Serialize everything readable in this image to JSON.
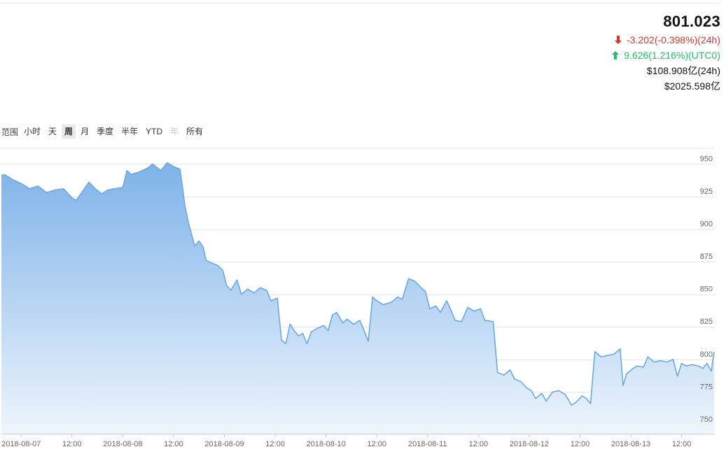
{
  "stats": {
    "price": "801.023",
    "change_24h": "-3.202(-0.398%)(24h)",
    "change_utc0": "9.626(1.216%)(UTC0)",
    "volume_24h": "$108.908亿(24h)",
    "market_cap": "$2025.598亿",
    "down_color": "#e5312b",
    "up_color": "#1ec266",
    "down_icon": "arrow-down-icon",
    "up_icon": "arrow-up-icon"
  },
  "range_selector": {
    "label": "范围",
    "options": [
      "小时",
      "天",
      "周",
      "月",
      "季度",
      "半年",
      "YTD",
      "年",
      "所有"
    ],
    "active": "周",
    "disabled": [
      "年"
    ]
  },
  "chart_data": {
    "type": "area",
    "title": "",
    "xlabel": "",
    "ylabel": "",
    "x_tick_labels": [
      "2018-08-07",
      "12:00",
      "2018-08-08",
      "12:00",
      "2018-08-09",
      "12:00",
      "2018-08-10",
      "12:00",
      "2018-08-11",
      "12:00",
      "2018-08-12",
      "12:00",
      "2018-08-13",
      "12:00"
    ],
    "y_ticks": [
      750,
      775,
      800,
      825,
      850,
      875,
      900,
      925,
      950
    ],
    "ylim": [
      743,
      962
    ],
    "xlim": [
      "2018-08-06 19:20",
      "2018-08-13 19:40"
    ],
    "grid": true,
    "y_axis_side": "right",
    "line_color": "#6aa9e6",
    "fill_top_color": "#7eb2e8",
    "fill_bottom_color": "#eef5fd",
    "series": [
      {
        "name": "",
        "points": [
          [
            "2018-08-06 19:20",
            941
          ],
          [
            "2018-08-06 20:00",
            942
          ],
          [
            "2018-08-06 22:00",
            938
          ],
          [
            "2018-08-07 00:00",
            935
          ],
          [
            "2018-08-07 02:00",
            931
          ],
          [
            "2018-08-07 04:00",
            933
          ],
          [
            "2018-08-07 06:00",
            928
          ],
          [
            "2018-08-07 08:00",
            930
          ],
          [
            "2018-08-07 10:00",
            931
          ],
          [
            "2018-08-07 12:00",
            924
          ],
          [
            "2018-08-07 13:00",
            922
          ],
          [
            "2018-08-07 14:30",
            929
          ],
          [
            "2018-08-07 16:00",
            936
          ],
          [
            "2018-08-07 17:30",
            931
          ],
          [
            "2018-08-07 19:00",
            927
          ],
          [
            "2018-08-07 20:30",
            930
          ],
          [
            "2018-08-07 22:00",
            931
          ],
          [
            "2018-08-08 00:00",
            932
          ],
          [
            "2018-08-08 01:00",
            945
          ],
          [
            "2018-08-08 02:00",
            942
          ],
          [
            "2018-08-08 04:00",
            944
          ],
          [
            "2018-08-08 06:00",
            947
          ],
          [
            "2018-08-08 07:00",
            950
          ],
          [
            "2018-08-08 09:00",
            945
          ],
          [
            "2018-08-08 10:30",
            951
          ],
          [
            "2018-08-08 12:00",
            948
          ],
          [
            "2018-08-08 13:30",
            946
          ],
          [
            "2018-08-08 14:00",
            935
          ],
          [
            "2018-08-08 14:40",
            918
          ],
          [
            "2018-08-08 15:30",
            905
          ],
          [
            "2018-08-08 17:00",
            887
          ],
          [
            "2018-08-08 18:00",
            891
          ],
          [
            "2018-08-08 19:00",
            886
          ],
          [
            "2018-08-08 19:40",
            876
          ],
          [
            "2018-08-08 21:00",
            874
          ],
          [
            "2018-08-08 22:30",
            872
          ],
          [
            "2018-08-08 23:40",
            868
          ],
          [
            "2018-08-09 00:30",
            857
          ],
          [
            "2018-08-09 01:30",
            853
          ],
          [
            "2018-08-09 03:00",
            861
          ],
          [
            "2018-08-09 04:00",
            850
          ],
          [
            "2018-08-09 05:30",
            854
          ],
          [
            "2018-08-09 07:00",
            851
          ],
          [
            "2018-08-09 08:30",
            855
          ],
          [
            "2018-08-09 10:00",
            853
          ],
          [
            "2018-08-09 11:00",
            845
          ],
          [
            "2018-08-09 12:30",
            847
          ],
          [
            "2018-08-09 13:30",
            815
          ],
          [
            "2018-08-09 14:30",
            812
          ],
          [
            "2018-08-09 15:30",
            827
          ],
          [
            "2018-08-09 16:30",
            822
          ],
          [
            "2018-08-09 17:30",
            818
          ],
          [
            "2018-08-09 18:30",
            820
          ],
          [
            "2018-08-09 19:30",
            812
          ],
          [
            "2018-08-09 20:30",
            821
          ],
          [
            "2018-08-09 22:00",
            824
          ],
          [
            "2018-08-09 23:30",
            826
          ],
          [
            "2018-08-10 00:30",
            822
          ],
          [
            "2018-08-10 01:30",
            834
          ],
          [
            "2018-08-10 02:30",
            836
          ],
          [
            "2018-08-10 04:00",
            828
          ],
          [
            "2018-08-10 05:00",
            831
          ],
          [
            "2018-08-10 06:30",
            827
          ],
          [
            "2018-08-10 08:00",
            830
          ],
          [
            "2018-08-10 09:00",
            822
          ],
          [
            "2018-08-10 10:00",
            814
          ],
          [
            "2018-08-10 11:00",
            848
          ],
          [
            "2018-08-10 12:00",
            845
          ],
          [
            "2018-08-10 13:30",
            842
          ],
          [
            "2018-08-10 15:30",
            844
          ],
          [
            "2018-08-10 17:00",
            848
          ],
          [
            "2018-08-10 18:00",
            846
          ],
          [
            "2018-08-10 19:30",
            862
          ],
          [
            "2018-08-10 21:00",
            860
          ],
          [
            "2018-08-10 22:30",
            855
          ],
          [
            "2018-08-10 23:30",
            852
          ],
          [
            "2018-08-11 00:30",
            839
          ],
          [
            "2018-08-11 02:00",
            841
          ],
          [
            "2018-08-11 03:00",
            836
          ],
          [
            "2018-08-11 04:30",
            845
          ],
          [
            "2018-08-11 05:30",
            838
          ],
          [
            "2018-08-11 06:30",
            830
          ],
          [
            "2018-08-11 08:00",
            829
          ],
          [
            "2018-08-11 09:30",
            840
          ],
          [
            "2018-08-11 11:00",
            837
          ],
          [
            "2018-08-11 12:30",
            839
          ],
          [
            "2018-08-11 13:30",
            830
          ],
          [
            "2018-08-11 15:30",
            829
          ],
          [
            "2018-08-11 16:30",
            790
          ],
          [
            "2018-08-11 18:00",
            788
          ],
          [
            "2018-08-11 19:30",
            792
          ],
          [
            "2018-08-11 20:30",
            785
          ],
          [
            "2018-08-11 22:00",
            783
          ],
          [
            "2018-08-11 23:30",
            778
          ],
          [
            "2018-08-12 00:30",
            776
          ],
          [
            "2018-08-12 01:30",
            770
          ],
          [
            "2018-08-12 03:00",
            774
          ],
          [
            "2018-08-12 04:00",
            768
          ],
          [
            "2018-08-12 05:30",
            775
          ],
          [
            "2018-08-12 07:00",
            776
          ],
          [
            "2018-08-12 08:30",
            773
          ],
          [
            "2018-08-12 10:00",
            765
          ],
          [
            "2018-08-12 11:00",
            767
          ],
          [
            "2018-08-12 12:30",
            772
          ],
          [
            "2018-08-12 13:30",
            770
          ],
          [
            "2018-08-12 14:30",
            766
          ],
          [
            "2018-08-12 15:30",
            806
          ],
          [
            "2018-08-12 17:00",
            802
          ],
          [
            "2018-08-12 18:30",
            803
          ],
          [
            "2018-08-12 20:00",
            804
          ],
          [
            "2018-08-12 21:30",
            808
          ],
          [
            "2018-08-12 22:10",
            780
          ],
          [
            "2018-08-12 23:00",
            789
          ],
          [
            "2018-08-13 00:30",
            793
          ],
          [
            "2018-08-13 01:30",
            795
          ],
          [
            "2018-08-13 03:00",
            794
          ],
          [
            "2018-08-13 04:00",
            802
          ],
          [
            "2018-08-13 05:30",
            798
          ],
          [
            "2018-08-13 07:00",
            799
          ],
          [
            "2018-08-13 08:30",
            798
          ],
          [
            "2018-08-13 10:00",
            800
          ],
          [
            "2018-08-13 11:00",
            787
          ],
          [
            "2018-08-13 12:00",
            797
          ],
          [
            "2018-08-13 13:00",
            795
          ],
          [
            "2018-08-13 14:30",
            796
          ],
          [
            "2018-08-13 16:00",
            795
          ],
          [
            "2018-08-13 17:00",
            793
          ],
          [
            "2018-08-13 18:00",
            797
          ],
          [
            "2018-08-13 19:00",
            791
          ],
          [
            "2018-08-13 19:40",
            806
          ]
        ]
      }
    ]
  }
}
